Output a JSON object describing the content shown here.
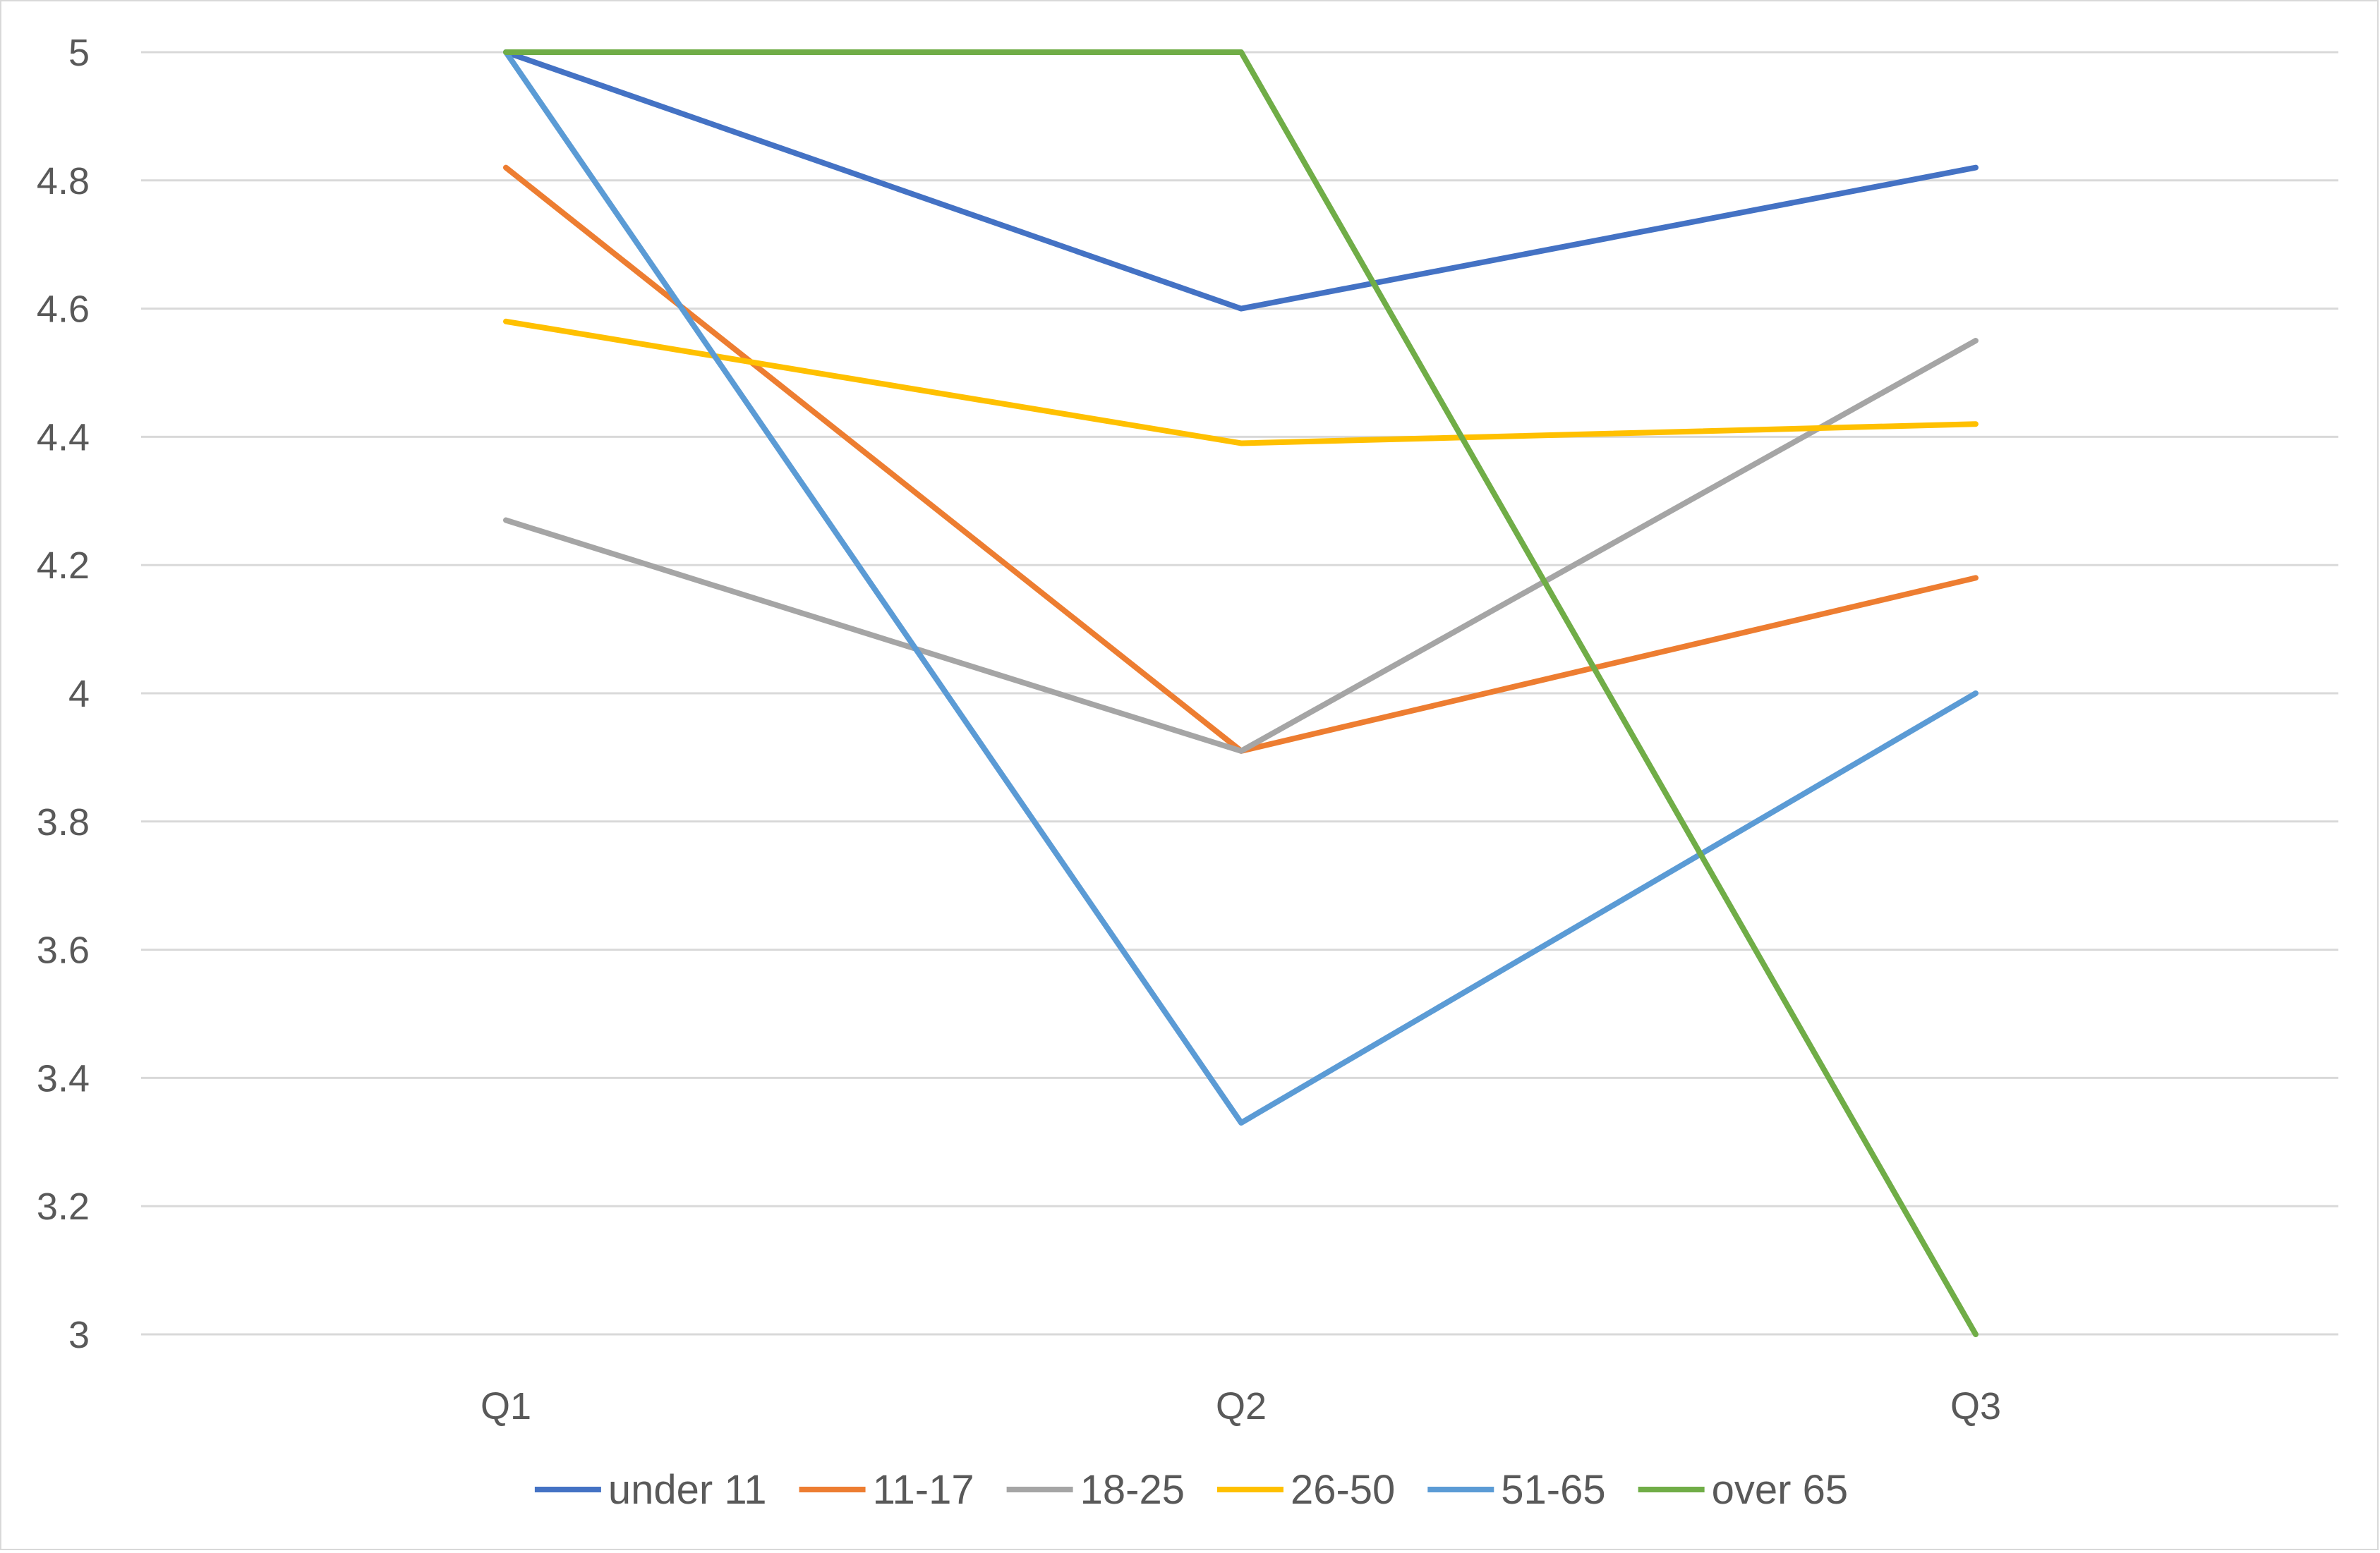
{
  "chart_data": {
    "type": "line",
    "title": "",
    "xlabel": "",
    "ylabel": "",
    "categories": [
      "Q1",
      "Q2",
      "Q3"
    ],
    "ylim": [
      3,
      5
    ],
    "y_ticks": [
      "3",
      "3.2",
      "3.4",
      "3.6",
      "3.8",
      "4",
      "4.2",
      "4.4",
      "4.6",
      "4.8",
      "5"
    ],
    "grid": true,
    "legend_position": "bottom",
    "series": [
      {
        "name": "under 11",
        "color": "#4472c4",
        "values": [
          5.0,
          4.6,
          4.82
        ]
      },
      {
        "name": "11-17",
        "color": "#ed7d31",
        "values": [
          4.82,
          3.91,
          4.18
        ]
      },
      {
        "name": "18-25",
        "color": "#a5a5a5",
        "values": [
          4.27,
          3.91,
          4.55
        ]
      },
      {
        "name": "26-50",
        "color": "#ffc000",
        "values": [
          4.58,
          4.39,
          4.42
        ]
      },
      {
        "name": "51-65",
        "color": "#5b9bd5",
        "values": [
          5.0,
          3.33,
          4.0
        ]
      },
      {
        "name": "over 65",
        "color": "#70ad47",
        "values": [
          5.0,
          5.0,
          3.0
        ]
      }
    ]
  }
}
